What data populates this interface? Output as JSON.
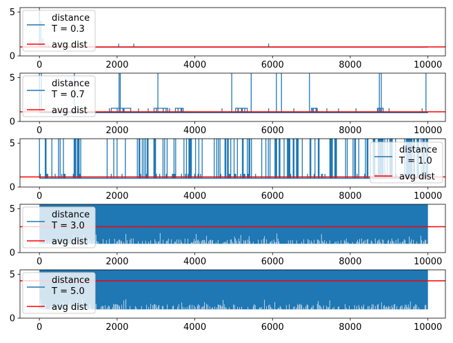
{
  "chart_data": [
    {
      "type": "line",
      "xlim": [
        -500,
        10450
      ],
      "ylim": [
        0,
        5.5
      ],
      "xticks": [
        0,
        2000,
        4000,
        6000,
        8000,
        10000
      ],
      "yticks": [
        0,
        5
      ],
      "legend_position": "upper-left",
      "series": [
        {
          "name": "distance\nT = 0.3",
          "color": "#1f77b4",
          "baseline": 1.0,
          "spike_level": 5.5,
          "spikes": [
            [
              0,
              5.5
            ],
            [
              40,
              4.0
            ],
            [
              90,
              2.0
            ],
            [
              150,
              1.4
            ],
            [
              230,
              1.3
            ],
            [
              2040,
              1.4
            ],
            [
              2430,
              1.4
            ],
            [
              5900,
              1.4
            ]
          ]
        },
        {
          "name": "avg dist",
          "color": "#ff0000",
          "avg": 1.02
        }
      ]
    },
    {
      "type": "line",
      "xlim": [
        -500,
        10450
      ],
      "ylim": [
        0,
        5.5
      ],
      "xticks": [
        0,
        2000,
        4000,
        6000,
        8000,
        10000
      ],
      "yticks": [
        0,
        5
      ],
      "legend_position": "upper-left",
      "series": [
        {
          "name": "distance\nT = 0.7",
          "color": "#1f77b4",
          "baseline": 1.0,
          "spike_level": 5.5,
          "spikes": [
            [
              0,
              5.5
            ],
            [
              50,
              5.5
            ],
            [
              900,
              5.5
            ],
            [
              2050,
              5.5
            ],
            [
              2080,
              5.5
            ],
            [
              3050,
              5.5
            ],
            [
              4950,
              5.5
            ],
            [
              5450,
              5.5
            ],
            [
              6100,
              5.5
            ],
            [
              6230,
              5.5
            ],
            [
              6950,
              5.5
            ],
            [
              8750,
              5.5
            ],
            [
              8800,
              5.5
            ],
            [
              9950,
              5.5
            ],
            [
              1800,
              1.5
            ],
            [
              2150,
              1.5
            ],
            [
              2550,
              1.5
            ],
            [
              2800,
              1.5
            ],
            [
              3350,
              1.5
            ],
            [
              3650,
              1.5
            ],
            [
              4700,
              1.5
            ],
            [
              5200,
              1.5
            ],
            [
              5900,
              1.5
            ],
            [
              6550,
              1.5
            ],
            [
              7050,
              1.5
            ],
            [
              7400,
              1.5
            ],
            [
              7700,
              1.5
            ],
            [
              8150,
              1.5
            ],
            [
              9000,
              1.5
            ],
            [
              9850,
              1.5
            ]
          ],
          "blocks": [
            [
              1850,
              2350,
              1.5
            ],
            [
              2950,
              3300,
              1.5
            ],
            [
              3500,
              3700,
              1.5
            ],
            [
              5050,
              5350,
              1.5
            ],
            [
              7000,
              7150,
              1.5
            ],
            [
              8700,
              8850,
              1.5
            ]
          ]
        },
        {
          "name": "avg dist",
          "color": "#ff0000",
          "avg": 1.1
        }
      ]
    },
    {
      "type": "line",
      "xlim": [
        -500,
        10450
      ],
      "ylim": [
        0,
        5.5
      ],
      "xticks": [
        0,
        2000,
        4000,
        6000,
        8000,
        10000
      ],
      "yticks": [
        0,
        5
      ],
      "legend_position": "right",
      "series": [
        {
          "name": "distance\n T = 1.0",
          "color": "#1f77b4",
          "baseline": 1.0,
          "spike_level": 5.5,
          "dense_ranges": [
            [
              0,
              700,
              0.55
            ],
            [
              850,
              1150,
              0.6
            ],
            [
              1700,
              2300,
              0.5
            ],
            [
              2500,
              3300,
              0.75
            ],
            [
              3400,
              4200,
              0.55
            ],
            [
              4500,
              5600,
              0.7
            ],
            [
              5700,
              6800,
              0.6
            ],
            [
              6900,
              8000,
              0.65
            ],
            [
              8050,
              8500,
              0.55
            ],
            [
              8550,
              9200,
              0.85
            ],
            [
              9400,
              10000,
              0.95
            ]
          ]
        },
        {
          "name": "avg dist",
          "color": "#ff0000",
          "avg": 1.15
        }
      ]
    },
    {
      "type": "line",
      "xlim": [
        -500,
        10450
      ],
      "ylim": [
        0,
        5.5
      ],
      "xticks": [
        0,
        2000,
        4000,
        6000,
        8000,
        10000
      ],
      "yticks": [
        0,
        5
      ],
      "legend_position": "upper-left",
      "series": [
        {
          "name": "distance\nT = 3.0",
          "color": "#1f77b4",
          "band": [
            1.0,
            5.5
          ],
          "x_range": [
            0,
            10000
          ]
        },
        {
          "name": "avg dist",
          "color": "#ff0000",
          "avg": 2.95
        }
      ]
    },
    {
      "type": "line",
      "xlim": [
        -500,
        10450
      ],
      "ylim": [
        0,
        5.5
      ],
      "xticks": [
        0,
        2000,
        4000,
        6000,
        8000,
        10000
      ],
      "yticks": [
        0,
        5
      ],
      "legend_position": "upper-left",
      "series": [
        {
          "name": "distance\nT = 5.0",
          "color": "#1f77b4",
          "band": [
            1.0,
            5.5
          ],
          "x_range": [
            0,
            10000
          ]
        },
        {
          "name": "avg dist",
          "color": "#ff0000",
          "avg": 4.25
        }
      ]
    }
  ]
}
